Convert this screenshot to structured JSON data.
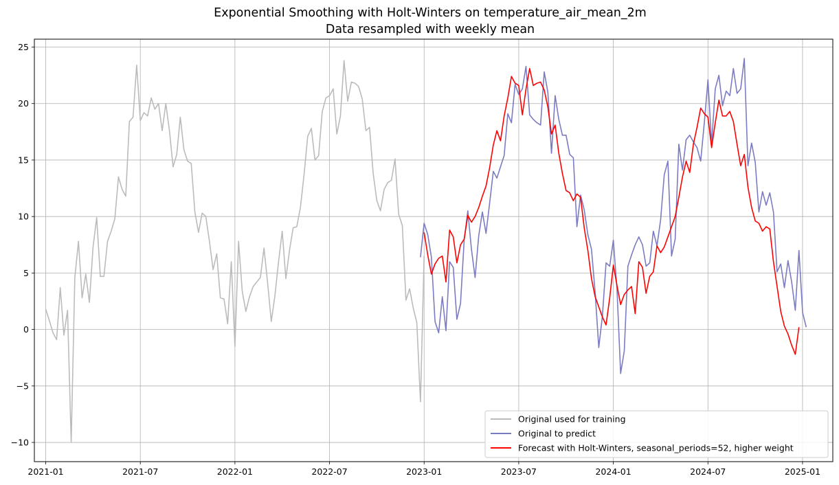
{
  "chart_data": {
    "type": "line",
    "title": "Exponential Smoothing with Holt-Winters on temperature_air_mean_2m",
    "subtitle": "Data resampled with weekly mean",
    "xlabel": "",
    "ylabel": "",
    "xlim": [
      2020.94,
      2025.16
    ],
    "ylim": [
      -11.7,
      25.7
    ],
    "grid": true,
    "legend_position": "lower-right",
    "x_ticks": [
      {
        "value": 2021.0,
        "label": "2021-01"
      },
      {
        "value": 2021.5,
        "label": "2021-07"
      },
      {
        "value": 2022.0,
        "label": "2022-01"
      },
      {
        "value": 2022.5,
        "label": "2022-07"
      },
      {
        "value": 2023.0,
        "label": "2023-01"
      },
      {
        "value": 2023.5,
        "label": "2023-07"
      },
      {
        "value": 2024.0,
        "label": "2024-01"
      },
      {
        "value": 2024.5,
        "label": "2024-07"
      },
      {
        "value": 2025.0,
        "label": "2025-01"
      }
    ],
    "y_ticks": [
      {
        "value": -10,
        "label": "−10"
      },
      {
        "value": -5,
        "label": "−5"
      },
      {
        "value": 0,
        "label": "0"
      },
      {
        "value": 5,
        "label": "5"
      },
      {
        "value": 10,
        "label": "10"
      },
      {
        "value": 15,
        "label": "15"
      },
      {
        "value": 20,
        "label": "20"
      },
      {
        "value": 25,
        "label": "25"
      }
    ],
    "series": [
      {
        "name": "Original used for training",
        "color": "#bbbbbb",
        "x_start": 2021.0,
        "x_step": 0.019231,
        "values": [
          1.8,
          0.8,
          -0.3,
          -0.9,
          3.7,
          -0.5,
          1.7,
          -10.0,
          4.6,
          7.8,
          2.8,
          4.9,
          2.4,
          7.3,
          9.9,
          4.7,
          4.7,
          7.8,
          8.7,
          9.8,
          13.5,
          12.4,
          11.8,
          18.4,
          18.8,
          23.4,
          18.5,
          19.2,
          18.9,
          20.5,
          19.5,
          20.0,
          17.6,
          20.0,
          17.6,
          14.4,
          15.5,
          18.8,
          15.9,
          14.9,
          14.7,
          10.4,
          8.6,
          10.3,
          10.0,
          7.8,
          5.3,
          6.7,
          2.8,
          2.7,
          0.5,
          6.0,
          -1.5,
          7.8,
          3.4,
          1.6,
          2.9,
          3.8,
          4.2,
          4.6,
          7.2,
          4.1,
          0.7,
          3.0,
          6.0,
          8.7,
          4.5,
          7.0,
          9.0,
          9.1,
          10.8,
          13.7,
          17.1,
          17.8,
          15.0,
          15.4,
          19.3,
          20.5,
          20.7,
          21.3,
          17.3,
          18.9,
          23.8,
          20.2,
          21.9,
          21.8,
          21.5,
          20.4,
          17.6,
          17.9,
          13.8,
          11.4,
          10.5,
          12.4,
          13.0,
          13.2,
          15.1,
          10.2,
          9.2,
          2.6,
          3.6,
          1.9,
          0.6,
          -6.4,
          6.5
        ]
      },
      {
        "name": "Original to predict",
        "color": "#7b7bc2",
        "x_start": 2022.9808,
        "x_step": 0.019231,
        "values": [
          6.4,
          9.4,
          8.4,
          6.4,
          0.7,
          -0.3,
          2.9,
          -0.1,
          6.0,
          5.5,
          0.9,
          2.3,
          7.9,
          10.5,
          7.1,
          4.6,
          8.3,
          10.4,
          8.5,
          11.2,
          14.0,
          13.4,
          14.4,
          15.4,
          19.1,
          18.3,
          21.7,
          20.8,
          21.3,
          23.3,
          19.0,
          18.6,
          18.3,
          18.1,
          22.8,
          21.0,
          15.6,
          20.7,
          18.6,
          17.2,
          17.2,
          15.5,
          15.2,
          9.1,
          11.9,
          10.6,
          8.4,
          7.1,
          3.3,
          -1.6,
          1.2,
          5.9,
          5.6,
          7.9,
          3.6,
          -3.9,
          -1.9,
          5.6,
          6.6,
          7.5,
          8.2,
          7.5,
          5.6,
          5.9,
          8.7,
          7.4,
          9.7,
          13.7,
          14.9,
          6.5,
          8.0,
          16.4,
          14.1,
          16.8,
          17.2,
          16.6,
          16.1,
          14.9,
          18.3,
          22.1,
          16.4,
          21.3,
          22.5,
          19.8,
          21.1,
          20.7,
          23.1,
          20.9,
          21.3,
          24.0,
          14.5,
          16.5,
          14.8,
          10.4,
          12.2,
          11.0,
          12.1,
          10.4,
          5.1,
          5.8,
          3.7,
          6.1,
          4.2,
          1.7,
          7.0,
          1.5,
          0.2
        ]
      },
      {
        "name": "Forecast with Holt-Winters, seasonal_periods=52, higher weight",
        "color": "#ff0000",
        "x_start": 2023.0,
        "x_step": 0.019231,
        "values": [
          8.6,
          6.6,
          4.9,
          5.8,
          6.3,
          6.5,
          4.2,
          8.8,
          8.2,
          5.9,
          7.5,
          8.0,
          10.1,
          9.5,
          10.0,
          10.8,
          11.8,
          12.7,
          14.3,
          16.3,
          17.6,
          16.7,
          18.9,
          20.5,
          22.4,
          21.8,
          21.6,
          19.0,
          21.3,
          23.1,
          21.6,
          21.8,
          21.9,
          21.2,
          19.7,
          17.3,
          18.1,
          15.6,
          13.8,
          12.3,
          12.1,
          11.4,
          12.0,
          11.7,
          9.0,
          7.0,
          4.5,
          2.9,
          2.0,
          1.1,
          0.4,
          2.8,
          5.7,
          3.9,
          2.2,
          3.1,
          3.5,
          3.8,
          1.4,
          6.0,
          5.5,
          3.2,
          4.7,
          5.1,
          7.4,
          6.8,
          7.3,
          8.2,
          9.1,
          10.0,
          11.7,
          13.5,
          14.9,
          13.9,
          16.4,
          17.9,
          19.6,
          19.1,
          18.8,
          16.1,
          18.3,
          20.3,
          18.9,
          18.9,
          19.3,
          18.4,
          16.4,
          14.5,
          15.5,
          12.6,
          10.8,
          9.6,
          9.4,
          8.7,
          9.1,
          8.9,
          6.0,
          3.8,
          1.6,
          0.3,
          -0.4,
          -1.4,
          -2.2,
          0.2
        ]
      }
    ]
  }
}
